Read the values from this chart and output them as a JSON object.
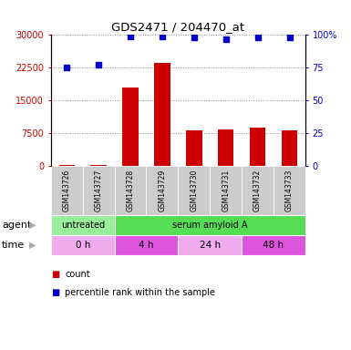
{
  "title": "GDS2471 / 204470_at",
  "samples": [
    "GSM143726",
    "GSM143727",
    "GSM143728",
    "GSM143729",
    "GSM143730",
    "GSM143731",
    "GSM143732",
    "GSM143733"
  ],
  "counts": [
    120,
    200,
    18000,
    23500,
    8000,
    8200,
    8800,
    8100
  ],
  "percentile_ranks": [
    75,
    77,
    99,
    99,
    98,
    97,
    98,
    98
  ],
  "ylim_left": [
    0,
    30000
  ],
  "ylim_right": [
    0,
    100
  ],
  "yticks_left": [
    0,
    7500,
    15000,
    22500,
    30000
  ],
  "yticks_right": [
    0,
    25,
    50,
    75,
    100
  ],
  "ytick_labels_left": [
    "0",
    "7500",
    "15000",
    "22500",
    "30000"
  ],
  "ytick_labels_right": [
    "0",
    "25",
    "50",
    "75",
    "100%"
  ],
  "bar_color": "#cc0000",
  "dot_color": "#0000cc",
  "agent_labels": [
    {
      "label": "untreated",
      "start": 0,
      "end": 2,
      "color": "#99ee99"
    },
    {
      "label": "serum amyloid A",
      "start": 2,
      "end": 8,
      "color": "#55dd55"
    }
  ],
  "time_labels": [
    {
      "label": "0 h",
      "start": 0,
      "end": 2,
      "color": "#f0aaee"
    },
    {
      "label": "4 h",
      "start": 2,
      "end": 4,
      "color": "#dd55dd"
    },
    {
      "label": "24 h",
      "start": 4,
      "end": 6,
      "color": "#f0aaee"
    },
    {
      "label": "48 h",
      "start": 6,
      "end": 8,
      "color": "#dd55dd"
    }
  ],
  "grid_color": "#888888",
  "label_color_left": "#cc0000",
  "label_color_right": "#0000cc",
  "fig_bg": "#ffffff",
  "panel_bg": "#ffffff",
  "tick_label_bg": "#cccccc"
}
